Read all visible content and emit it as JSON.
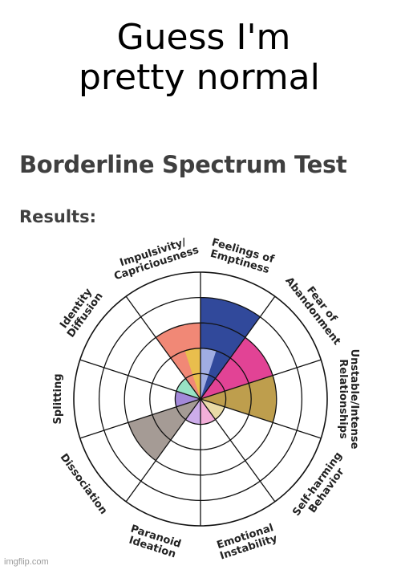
{
  "caption": {
    "line1": "Guess I'm",
    "line2": "pretty normal"
  },
  "test_title": "Borderline Spectrum Test",
  "results_label": "Results:",
  "watermark": "imgflip.com",
  "chart_data": {
    "type": "polar-area",
    "rings": 5,
    "categories": [
      {
        "label": [
          "Feelings of",
          "Emptiness"
        ],
        "value": 4,
        "color": "#1f3a93"
      },
      {
        "label": [
          "Fear of",
          "Abandonment"
        ],
        "value": 3,
        "color": "#e0338c"
      },
      {
        "label": [
          "Unstable/Intense",
          "Relationships"
        ],
        "value": 3,
        "color": "#b8963e"
      },
      {
        "label": [
          "Self-harming",
          "Behavior"
        ],
        "value": 1,
        "color": "#e8d9a0"
      },
      {
        "label": [
          "Emotional",
          "Instability"
        ],
        "value": 1,
        "color": "#f2a8d6"
      },
      {
        "label": [
          "Paranoid",
          "Ideation"
        ],
        "value": 1,
        "color": "#c9a6e8"
      },
      {
        "label": [
          "Dissociation"
        ],
        "value": 3,
        "color": "#9d938c"
      },
      {
        "label": [
          "Splitting"
        ],
        "value": 1,
        "color": "#9b7fd6"
      },
      {
        "label": [
          "Identity",
          "Diffusion"
        ],
        "value": 1,
        "color": "#8fe0bf"
      },
      {
        "label": [
          "Impulsivity/",
          "Capriciousness"
        ],
        "value": 3,
        "color": "#f07e6a"
      },
      {
        "label": [
          "Impulsivity/",
          "Capriciousness"
        ],
        "value": 2,
        "color": "#e8c24a"
      },
      {
        "label": [
          "Feelings of",
          "Emptiness"
        ],
        "value": 2,
        "color": "#a9b6e8"
      }
    ]
  }
}
